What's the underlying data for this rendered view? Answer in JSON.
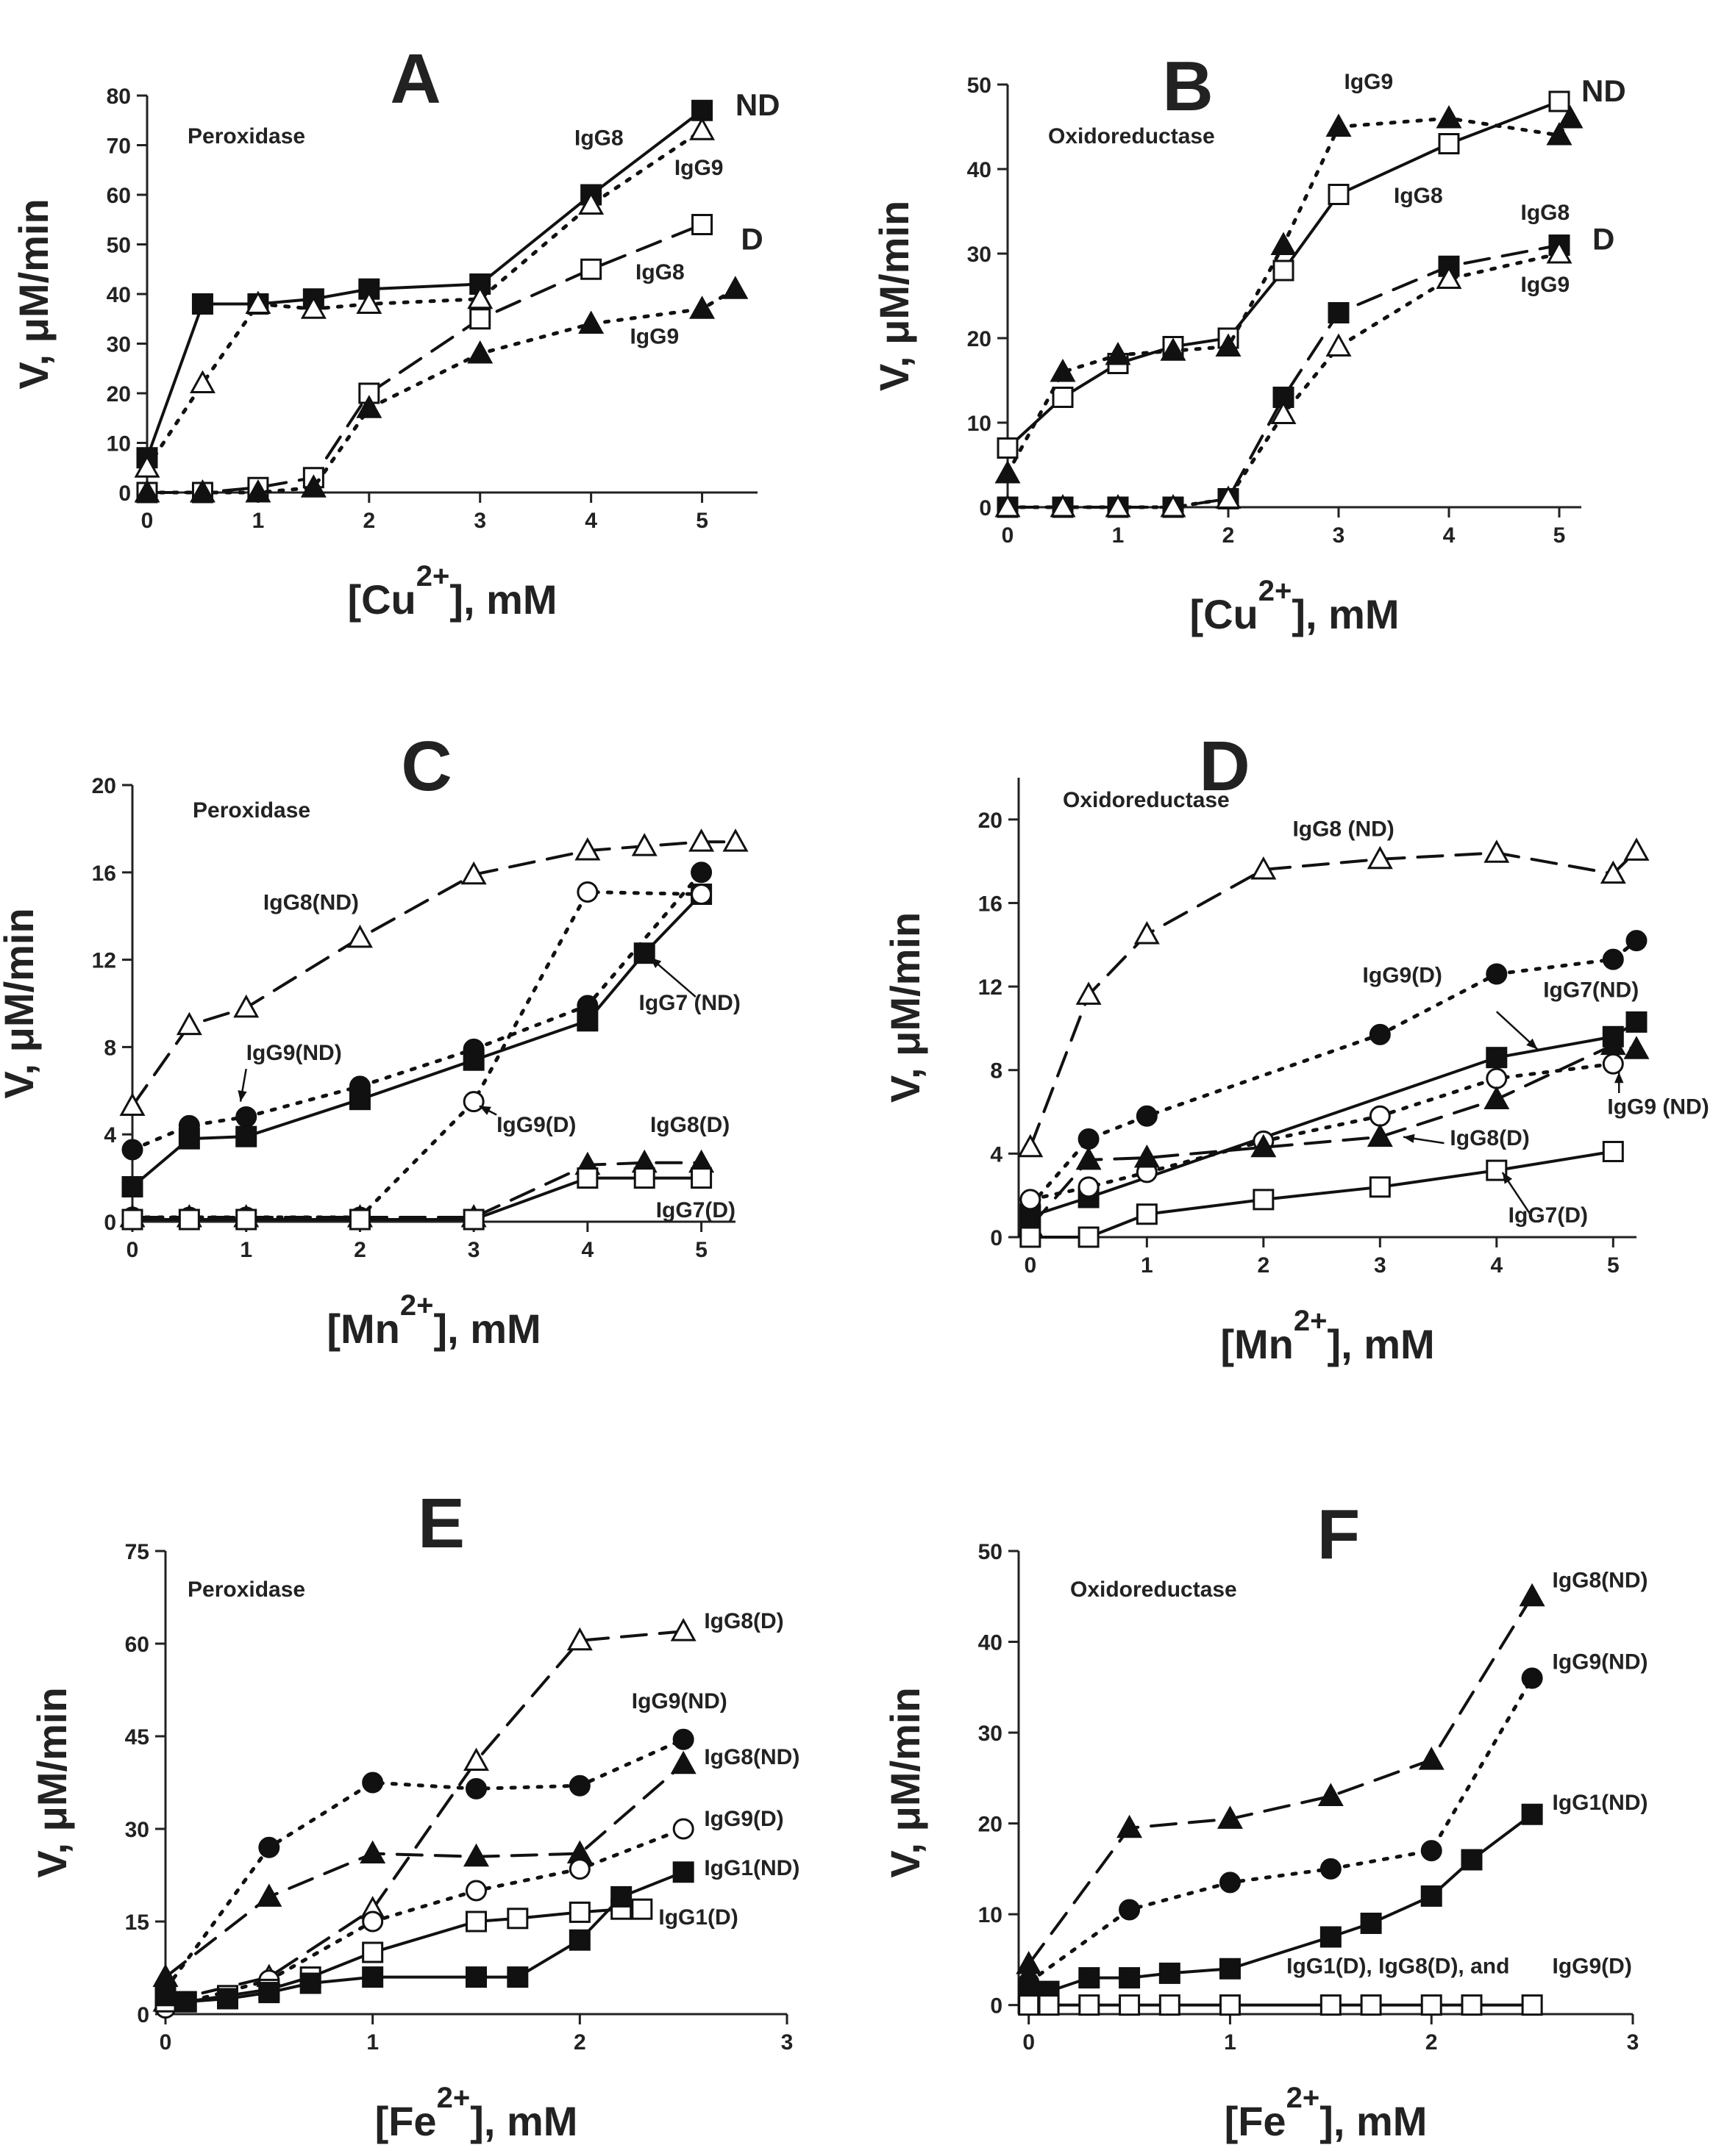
{
  "chart_data": [
    {
      "id": "A",
      "type": "line",
      "panel_label": "A",
      "title": "Peroxidase",
      "ylabel": "V, μM/min",
      "xlabel": "[Cu2+], mM",
      "xlim": [
        0,
        5.5
      ],
      "ylim": [
        0,
        80
      ],
      "xticks": [
        0,
        1,
        2,
        3,
        4,
        5
      ],
      "yticks": [
        0,
        10,
        20,
        30,
        40,
        50,
        60,
        70,
        80
      ],
      "series": [
        {
          "name": "IgG8 ND",
          "marker": "sq-f",
          "line": "solid",
          "x": [
            0,
            0.5,
            1,
            1.5,
            2,
            3,
            4,
            5
          ],
          "y": [
            7,
            38,
            38,
            39,
            41,
            42,
            60,
            77
          ]
        },
        {
          "name": "IgG9 ND",
          "marker": "tri-o",
          "line": "dot",
          "x": [
            0,
            0.5,
            1,
            1.5,
            2,
            3,
            4,
            5
          ],
          "y": [
            5,
            22,
            38,
            37,
            38,
            39,
            58,
            73
          ]
        },
        {
          "name": "IgG8 D",
          "marker": "sq-o",
          "line": "dash",
          "x": [
            0,
            0.5,
            1,
            1.5,
            2,
            3,
            4,
            5
          ],
          "y": [
            0,
            0,
            1,
            3,
            20,
            35,
            45,
            54
          ]
        },
        {
          "name": "IgG9 D",
          "marker": "tri-f",
          "line": "dot",
          "x": [
            0,
            0.5,
            1,
            1.5,
            2,
            3,
            4,
            5,
            5.3
          ],
          "y": [
            0,
            0,
            0,
            1,
            17,
            28,
            34,
            37,
            41
          ]
        }
      ],
      "labels": [
        {
          "text": "ND",
          "x": 5.3,
          "y": 76,
          "big": true
        },
        {
          "text": "IgG8",
          "x": 3.85,
          "y": 70
        },
        {
          "text": "IgG9",
          "x": 4.75,
          "y": 64
        },
        {
          "text": "D",
          "x": 5.35,
          "y": 49,
          "big": true
        },
        {
          "text": "IgG8",
          "x": 4.4,
          "y": 43
        },
        {
          "text": "IgG9",
          "x": 4.35,
          "y": 30
        }
      ]
    },
    {
      "id": "B",
      "type": "line",
      "panel_label": "B",
      "title": "Oxidoreductase",
      "ylabel": "V, μM/min",
      "xlabel": "[Cu2+], mM",
      "xlim": [
        0,
        5.2
      ],
      "ylim": [
        0,
        50
      ],
      "xticks": [
        0,
        1,
        2,
        3,
        4,
        5
      ],
      "yticks": [
        0,
        10,
        20,
        30,
        40,
        50
      ],
      "series": [
        {
          "name": "IgG8 ND",
          "marker": "sq-o",
          "line": "solid",
          "x": [
            0,
            0.5,
            1,
            1.5,
            2,
            2.5,
            3,
            4,
            5
          ],
          "y": [
            7,
            13,
            17,
            19,
            20,
            28,
            37,
            43,
            48
          ]
        },
        {
          "name": "IgG9 ND",
          "marker": "tri-f",
          "line": "dot",
          "x": [
            0,
            0.5,
            1,
            1.5,
            2,
            2.5,
            3,
            4,
            5,
            5.1
          ],
          "y": [
            4,
            16,
            18,
            18.5,
            19,
            31,
            45,
            46,
            44,
            46
          ]
        },
        {
          "name": "IgG8 D",
          "marker": "sq-f",
          "line": "dash",
          "x": [
            0,
            0.5,
            1,
            1.5,
            2,
            2.5,
            3,
            4,
            5
          ],
          "y": [
            0,
            0,
            0,
            0,
            1,
            13,
            23,
            28.5,
            31
          ]
        },
        {
          "name": "IgG9 D",
          "marker": "tri-o",
          "line": "dot",
          "x": [
            0,
            0.5,
            1,
            1.5,
            2,
            2.5,
            3,
            4,
            5
          ],
          "y": [
            0,
            0,
            0,
            0,
            1,
            11,
            19,
            27,
            30
          ]
        }
      ],
      "labels": [
        {
          "text": "ND",
          "x": 5.2,
          "y": 48,
          "big": true
        },
        {
          "text": "IgG9",
          "x": 3.05,
          "y": 49.5
        },
        {
          "text": "IgG8",
          "x": 3.5,
          "y": 36
        },
        {
          "text": "IgG8",
          "x": 4.65,
          "y": 34
        },
        {
          "text": "D",
          "x": 5.3,
          "y": 30.5,
          "big": true
        },
        {
          "text": "IgG9",
          "x": 4.65,
          "y": 25.5
        }
      ]
    },
    {
      "id": "C",
      "type": "line",
      "panel_label": "C",
      "title": "Peroxidase",
      "ylabel": "V, μM/min",
      "xlabel": "[Mn2+], mM",
      "xlim": [
        0,
        5.3
      ],
      "ylim": [
        0,
        20
      ],
      "xticks": [
        0,
        1,
        2,
        3,
        4,
        5
      ],
      "yticks": [
        0,
        4,
        8,
        12,
        16,
        20
      ],
      "series": [
        {
          "name": "IgG8(ND)",
          "marker": "tri-o",
          "line": "dash",
          "x": [
            0,
            0.5,
            1,
            2,
            3,
            4,
            4.5,
            5,
            5.3
          ],
          "y": [
            5.3,
            9,
            9.8,
            13,
            15.9,
            17,
            17.2,
            17.4,
            17.4
          ]
        },
        {
          "name": "IgG9(ND)",
          "marker": "circ-f",
          "line": "dot",
          "x": [
            0,
            0.5,
            1,
            2,
            3,
            4,
            5
          ],
          "y": [
            3.3,
            4.4,
            4.8,
            6.2,
            7.9,
            9.9,
            16
          ]
        },
        {
          "name": "IgG7 (ND)",
          "marker": "sq-f",
          "line": "solid",
          "x": [
            0,
            0.5,
            1,
            2,
            3,
            4,
            4.5,
            5
          ],
          "y": [
            1.6,
            3.8,
            3.9,
            5.6,
            7.4,
            9.2,
            12.3,
            15
          ]
        },
        {
          "name": "IgG9(D)",
          "marker": "circ-o",
          "line": "dot",
          "x": [
            0,
            0.5,
            1,
            2,
            3,
            4,
            5
          ],
          "y": [
            0.2,
            0.2,
            0.2,
            0.2,
            5.5,
            15.1,
            15
          ]
        },
        {
          "name": "IgG8(D)",
          "marker": "tri-f",
          "line": "dash",
          "x": [
            0,
            0.5,
            1,
            2,
            3,
            4,
            4.5,
            5
          ],
          "y": [
            0.2,
            0.2,
            0.2,
            0.2,
            0.2,
            2.6,
            2.7,
            2.7
          ]
        },
        {
          "name": "IgG7(D)",
          "marker": "sq-o",
          "line": "solid",
          "x": [
            0,
            0.5,
            1,
            2,
            3,
            4,
            4.5,
            5
          ],
          "y": [
            0.1,
            0.1,
            0.1,
            0.1,
            0.1,
            2,
            2,
            2
          ]
        }
      ],
      "labels": [
        {
          "text": "IgG8(ND)",
          "x": 1.15,
          "y": 14.3
        },
        {
          "text": "IgG9(ND)",
          "x": 1.0,
          "y": 7.4
        },
        {
          "text": "IgG7 (ND)",
          "x": 4.45,
          "y": 9.7
        },
        {
          "text": "IgG9(D)",
          "x": 3.2,
          "y": 4.1
        },
        {
          "text": "IgG8(D)",
          "x": 4.55,
          "y": 4.1
        },
        {
          "text": "IgG7(D)",
          "x": 4.6,
          "y": 0.2
        }
      ],
      "arrows": [
        {
          "from": [
            1.0,
            7.0
          ],
          "to": [
            0.95,
            5.5
          ]
        },
        {
          "from": [
            4.95,
            10.3
          ],
          "to": [
            4.55,
            12.1
          ]
        },
        {
          "from": [
            3.2,
            4.9
          ],
          "to": [
            3.05,
            5.3
          ]
        }
      ]
    },
    {
      "id": "D",
      "type": "line",
      "panel_label": "D",
      "title": "Oxidoreductase",
      "ylabel": "V, μM/min",
      "xlabel": "[Mn2+], mM",
      "xlim": [
        -0.1,
        5.2
      ],
      "ylim": [
        0,
        22
      ],
      "xticks": [
        0,
        1,
        2,
        3,
        4,
        5
      ],
      "yticks": [
        0,
        4,
        8,
        12,
        16,
        20
      ],
      "series": [
        {
          "name": "IgG8 (ND)",
          "marker": "tri-o",
          "line": "dash",
          "x": [
            0,
            0.5,
            1,
            2,
            3,
            4,
            5,
            5.2
          ],
          "y": [
            4.3,
            11.6,
            14.5,
            17.6,
            18.1,
            18.4,
            17.4,
            18.5
          ]
        },
        {
          "name": "IgG9(D)",
          "marker": "circ-f",
          "line": "dot",
          "x": [
            0,
            0.5,
            1,
            3,
            4,
            5,
            5.2
          ],
          "y": [
            1.5,
            4.7,
            5.8,
            9.7,
            12.6,
            13.3,
            14.2
          ]
        },
        {
          "name": "IgG7(ND)",
          "marker": "sq-f",
          "line": "solid",
          "x": [
            0,
            0.5,
            4,
            5,
            5.2
          ],
          "y": [
            1,
            1.9,
            8.6,
            9.6,
            10.3
          ]
        },
        {
          "name": "IgG9 (ND)",
          "marker": "circ-o",
          "line": "dot",
          "x": [
            0,
            0.5,
            1,
            2,
            3,
            4,
            5
          ],
          "y": [
            1.8,
            2.4,
            3.1,
            4.6,
            5.8,
            7.6,
            8.3
          ]
        },
        {
          "name": "IgG8(D)",
          "marker": "tri-f",
          "line": "dash",
          "x": [
            0,
            0.5,
            1,
            2,
            3,
            4,
            5,
            5.2
          ],
          "y": [
            0.5,
            3.7,
            3.8,
            4.3,
            4.8,
            6.6,
            9.2,
            9.0
          ]
        },
        {
          "name": "IgG7(D)",
          "marker": "sq-o",
          "line": "solid",
          "x": [
            0,
            0.5,
            1,
            2,
            3,
            4,
            5
          ],
          "y": [
            0,
            0,
            1.1,
            1.8,
            2.4,
            3.2,
            4.1
          ]
        }
      ],
      "labels": [
        {
          "text": "IgG8 (ND)",
          "x": 2.25,
          "y": 19.2
        },
        {
          "text": "IgG9(D)",
          "x": 2.85,
          "y": 12.2
        },
        {
          "text": "IgG7(ND)",
          "x": 4.4,
          "y": 11.5
        },
        {
          "text": "IgG9 (ND)",
          "x": 4.95,
          "y": 5.9
        },
        {
          "text": "IgG8(D)",
          "x": 3.6,
          "y": 4.4
        },
        {
          "text": "IgG7(D)",
          "x": 4.1,
          "y": 0.7
        }
      ],
      "arrows": [
        {
          "from": [
            4.0,
            10.8
          ],
          "to": [
            4.35,
            9.0
          ]
        },
        {
          "from": [
            3.55,
            4.5
          ],
          "to": [
            3.2,
            4.8
          ]
        },
        {
          "from": [
            4.3,
            1.0
          ],
          "to": [
            4.05,
            3.1
          ]
        },
        {
          "from": [
            5.05,
            6.9
          ],
          "to": [
            5.05,
            7.9
          ]
        }
      ]
    },
    {
      "id": "E",
      "type": "line",
      "panel_label": "E",
      "title": "Peroxidase",
      "ylabel": "V, μM/min",
      "xlabel": "[Fe2+], mM",
      "xlim": [
        0,
        3
      ],
      "ylim": [
        0,
        75
      ],
      "xticks": [
        0,
        1,
        2,
        3
      ],
      "yticks": [
        0,
        15,
        30,
        45,
        60,
        75
      ],
      "series": [
        {
          "name": "IgG8(D)",
          "marker": "tri-o",
          "line": "dash",
          "x": [
            0,
            0.5,
            1,
            1.5,
            2,
            2.5
          ],
          "y": [
            2,
            6,
            17,
            41,
            60.5,
            62
          ]
        },
        {
          "name": "IgG9(ND)",
          "marker": "circ-f",
          "line": "dot",
          "x": [
            0,
            0.5,
            1,
            1.5,
            2,
            2.5
          ],
          "y": [
            4,
            27,
            37.5,
            36.5,
            37,
            44.5
          ]
        },
        {
          "name": "IgG8(ND)",
          "marker": "tri-f",
          "line": "dash",
          "x": [
            0,
            0.5,
            1,
            1.5,
            2,
            2.5
          ],
          "y": [
            6,
            19,
            26,
            25.5,
            26,
            40.5
          ]
        },
        {
          "name": "IgG9(D)",
          "marker": "circ-o",
          "line": "dot",
          "x": [
            0,
            0.5,
            1,
            1.5,
            2,
            2.5
          ],
          "y": [
            1,
            5.5,
            15,
            20,
            23.5,
            30
          ]
        },
        {
          "name": "IgG1(D)",
          "marker": "sq-o",
          "line": "solid",
          "x": [
            0,
            0.1,
            0.3,
            0.5,
            0.7,
            1,
            1.5,
            1.7,
            2,
            2.2,
            2.3
          ],
          "y": [
            2,
            2,
            3,
            4,
            6,
            10,
            15,
            15.5,
            16.5,
            17,
            17
          ]
        },
        {
          "name": "IgG1(ND)",
          "marker": "sq-f",
          "line": "solid",
          "x": [
            0,
            0.1,
            0.3,
            0.5,
            0.7,
            1,
            1.5,
            1.7,
            2,
            2.2,
            2.5
          ],
          "y": [
            3,
            2,
            2.5,
            3.5,
            5,
            6,
            6,
            6,
            12,
            19,
            23
          ]
        }
      ],
      "labels": [
        {
          "text": "IgG8(D)",
          "x": 2.6,
          "y": 62.5
        },
        {
          "text": "IgG9(ND)",
          "x": 2.25,
          "y": 49.5
        },
        {
          "text": "IgG8(ND)",
          "x": 2.6,
          "y": 40.5
        },
        {
          "text": "IgG9(D)",
          "x": 2.6,
          "y": 30.5
        },
        {
          "text": "IgG1(ND)",
          "x": 2.6,
          "y": 22.5
        },
        {
          "text": "IgG1(D)",
          "x": 2.38,
          "y": 14.5
        }
      ]
    },
    {
      "id": "F",
      "type": "line",
      "panel_label": "F",
      "title": "Oxidoreductase",
      "ylabel": "V, μM/min",
      "xlabel": "[Fe2+], mM",
      "xlim": [
        -0.05,
        3
      ],
      "ylim": [
        -1,
        50
      ],
      "xticks": [
        0,
        1,
        2,
        3
      ],
      "yticks": [
        0,
        10,
        20,
        30,
        40,
        50
      ],
      "series": [
        {
          "name": "IgG8(ND)",
          "marker": "tri-f",
          "line": "dash",
          "x": [
            0,
            0.5,
            1,
            1.5,
            2,
            2.5
          ],
          "y": [
            4.5,
            19.5,
            20.5,
            23,
            27,
            45
          ]
        },
        {
          "name": "IgG9(ND)",
          "marker": "circ-f",
          "line": "dot",
          "x": [
            0,
            0.5,
            1,
            1.5,
            2,
            2.5
          ],
          "y": [
            2.5,
            10.5,
            13.5,
            15,
            17,
            36
          ]
        },
        {
          "name": "IgG1(ND)",
          "marker": "sq-f",
          "line": "solid",
          "x": [
            0,
            0.1,
            0.3,
            0.5,
            0.7,
            1,
            1.5,
            1.7,
            2,
            2.2,
            2.5
          ],
          "y": [
            1,
            1.5,
            3,
            3,
            3.5,
            4,
            7.5,
            9,
            12,
            16,
            21
          ]
        },
        {
          "name": "IgG1(D), IgG8(D), and IgG9(D)",
          "marker": "sq-o",
          "line": "solid",
          "x": [
            0,
            0.1,
            0.3,
            0.5,
            0.7,
            1,
            1.5,
            1.7,
            2,
            2.2,
            2.5
          ],
          "y": [
            0,
            0,
            0,
            0,
            0,
            0,
            0,
            0,
            0,
            0,
            0
          ]
        }
      ],
      "labels": [
        {
          "text": "IgG8(ND)",
          "x": 2.6,
          "y": 46
        },
        {
          "text": "IgG9(ND)",
          "x": 2.6,
          "y": 37
        },
        {
          "text": "IgG1(ND)",
          "x": 2.6,
          "y": 21.5
        },
        {
          "text": "IgG1(D), IgG8(D), and",
          "x": 1.28,
          "y": 3.5
        },
        {
          "text": "IgG9(D)",
          "x": 2.6,
          "y": 3.5
        }
      ]
    }
  ]
}
